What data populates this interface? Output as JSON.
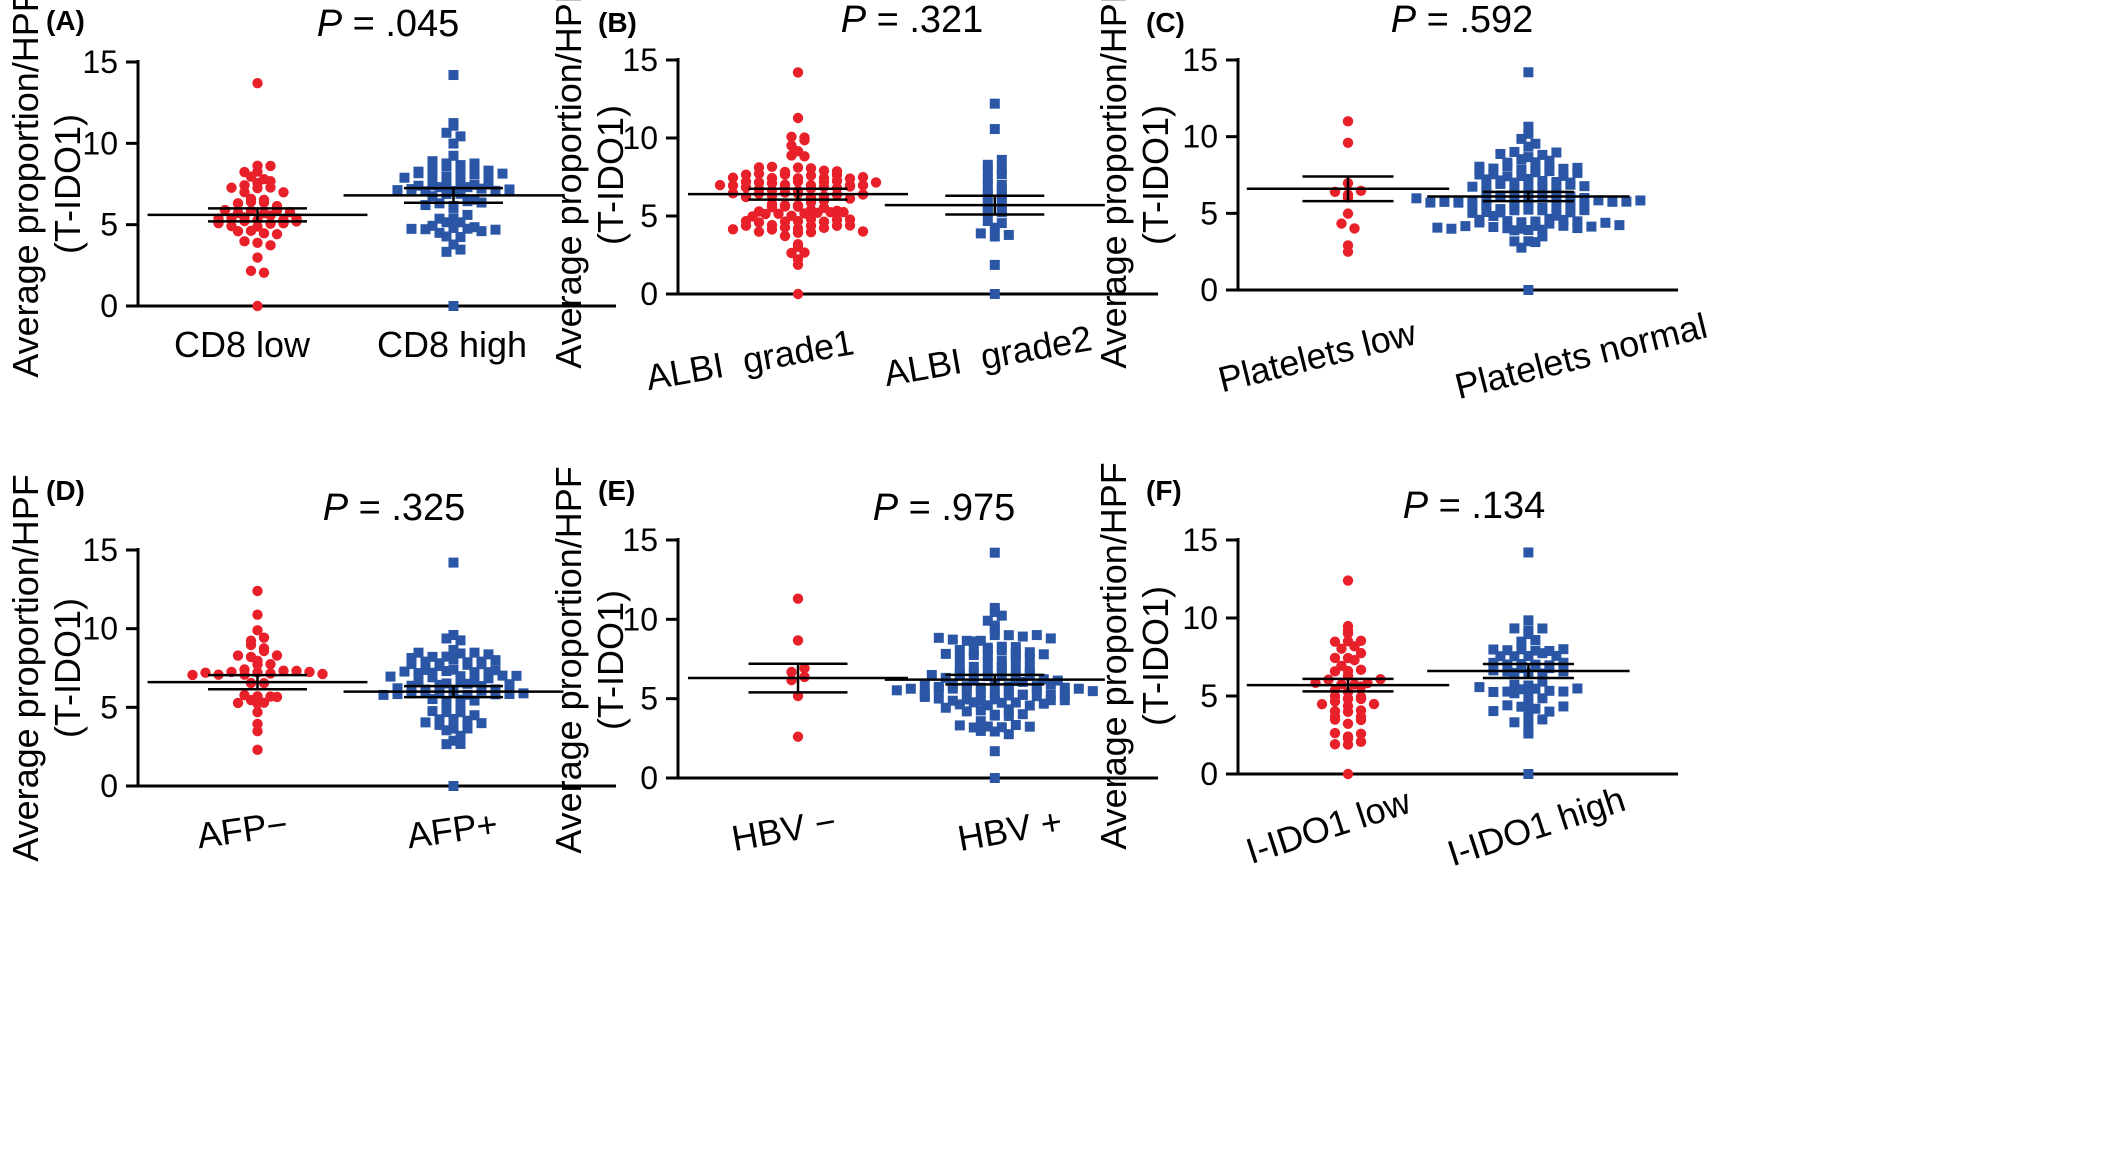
{
  "figure": {
    "y_axis_label_line1": "Average proportion/HPF",
    "y_axis_label_line2": "(T-IDO1)",
    "y_ticks": [
      "0",
      "5",
      "10",
      "15"
    ],
    "colors": {
      "group1": "#e8202a",
      "group2": "#2a56a5",
      "axis": "#000000"
    },
    "markers": {
      "group1": "circle",
      "group2": "square"
    }
  },
  "chart_data": [
    {
      "panel": "(A)",
      "type": "scatter",
      "p_prefix": "P",
      "p_text": " = .045",
      "ylim": [
        0,
        15
      ],
      "categories": [
        "CD8 low",
        "CD8 high"
      ],
      "series": [
        {
          "mean": 5.6,
          "sem": 0.4,
          "n": 52,
          "min": 0.0,
          "max": 13.7
        },
        {
          "mean": 6.8,
          "sem": 0.45,
          "n": 70,
          "min": 0.0,
          "max": 14.2
        }
      ]
    },
    {
      "panel": "(B)",
      "type": "scatter",
      "p_prefix": "P",
      "p_text": " = .321",
      "ylim": [
        0,
        15
      ],
      "categories": [
        "ALBI  grade1",
        "ALBI  grade2"
      ],
      "series": [
        {
          "mean": 6.4,
          "sem": 0.35,
          "n": 110,
          "min": 0.0,
          "max": 14.2
        },
        {
          "mean": 5.7,
          "sem": 0.6,
          "n": 28,
          "min": 0.0,
          "max": 12.2
        }
      ]
    },
    {
      "panel": "(C)",
      "type": "scatter",
      "p_prefix": "P",
      "p_text": " = .592",
      "ylim": [
        0,
        15
      ],
      "categories": [
        "Platelets low",
        "Platelets normal"
      ],
      "series": [
        {
          "mean": 6.6,
          "sem": 0.8,
          "n": 12,
          "min": 2.5,
          "max": 11.0
        },
        {
          "mean": 6.1,
          "sem": 0.3,
          "n": 120,
          "min": 0.0,
          "max": 14.2
        }
      ]
    },
    {
      "panel": "(D)",
      "type": "scatter",
      "p_prefix": "P",
      "p_text": " = .325",
      "ylim": [
        0,
        15
      ],
      "categories": [
        "AFP−",
        "AFP+"
      ],
      "series": [
        {
          "mean": 6.6,
          "sem": 0.45,
          "n": 40,
          "min": 2.3,
          "max": 12.4
        },
        {
          "mean": 6.0,
          "sem": 0.35,
          "n": 85,
          "min": 0.0,
          "max": 14.2
        }
      ]
    },
    {
      "panel": "(E)",
      "type": "scatter",
      "p_prefix": "P",
      "p_text": " = .975",
      "ylim": [
        0,
        15
      ],
      "categories": [
        "HBV −",
        "HBV +"
      ],
      "series": [
        {
          "mean": 6.3,
          "sem": 0.9,
          "n": 8,
          "min": 2.6,
          "max": 11.3
        },
        {
          "mean": 6.2,
          "sem": 0.3,
          "n": 120,
          "min": 0.0,
          "max": 14.2
        }
      ]
    },
    {
      "panel": "(F)",
      "type": "scatter",
      "p_prefix": "P",
      "p_text": " = .134",
      "ylim": [
        0,
        15
      ],
      "categories": [
        "I-IDO1 low",
        "I-IDO1 high"
      ],
      "series": [
        {
          "mean": 5.7,
          "sem": 0.4,
          "n": 52,
          "min": 0.0,
          "max": 12.4
        },
        {
          "mean": 6.6,
          "sem": 0.45,
          "n": 62,
          "min": 0.0,
          "max": 14.2
        }
      ]
    }
  ]
}
